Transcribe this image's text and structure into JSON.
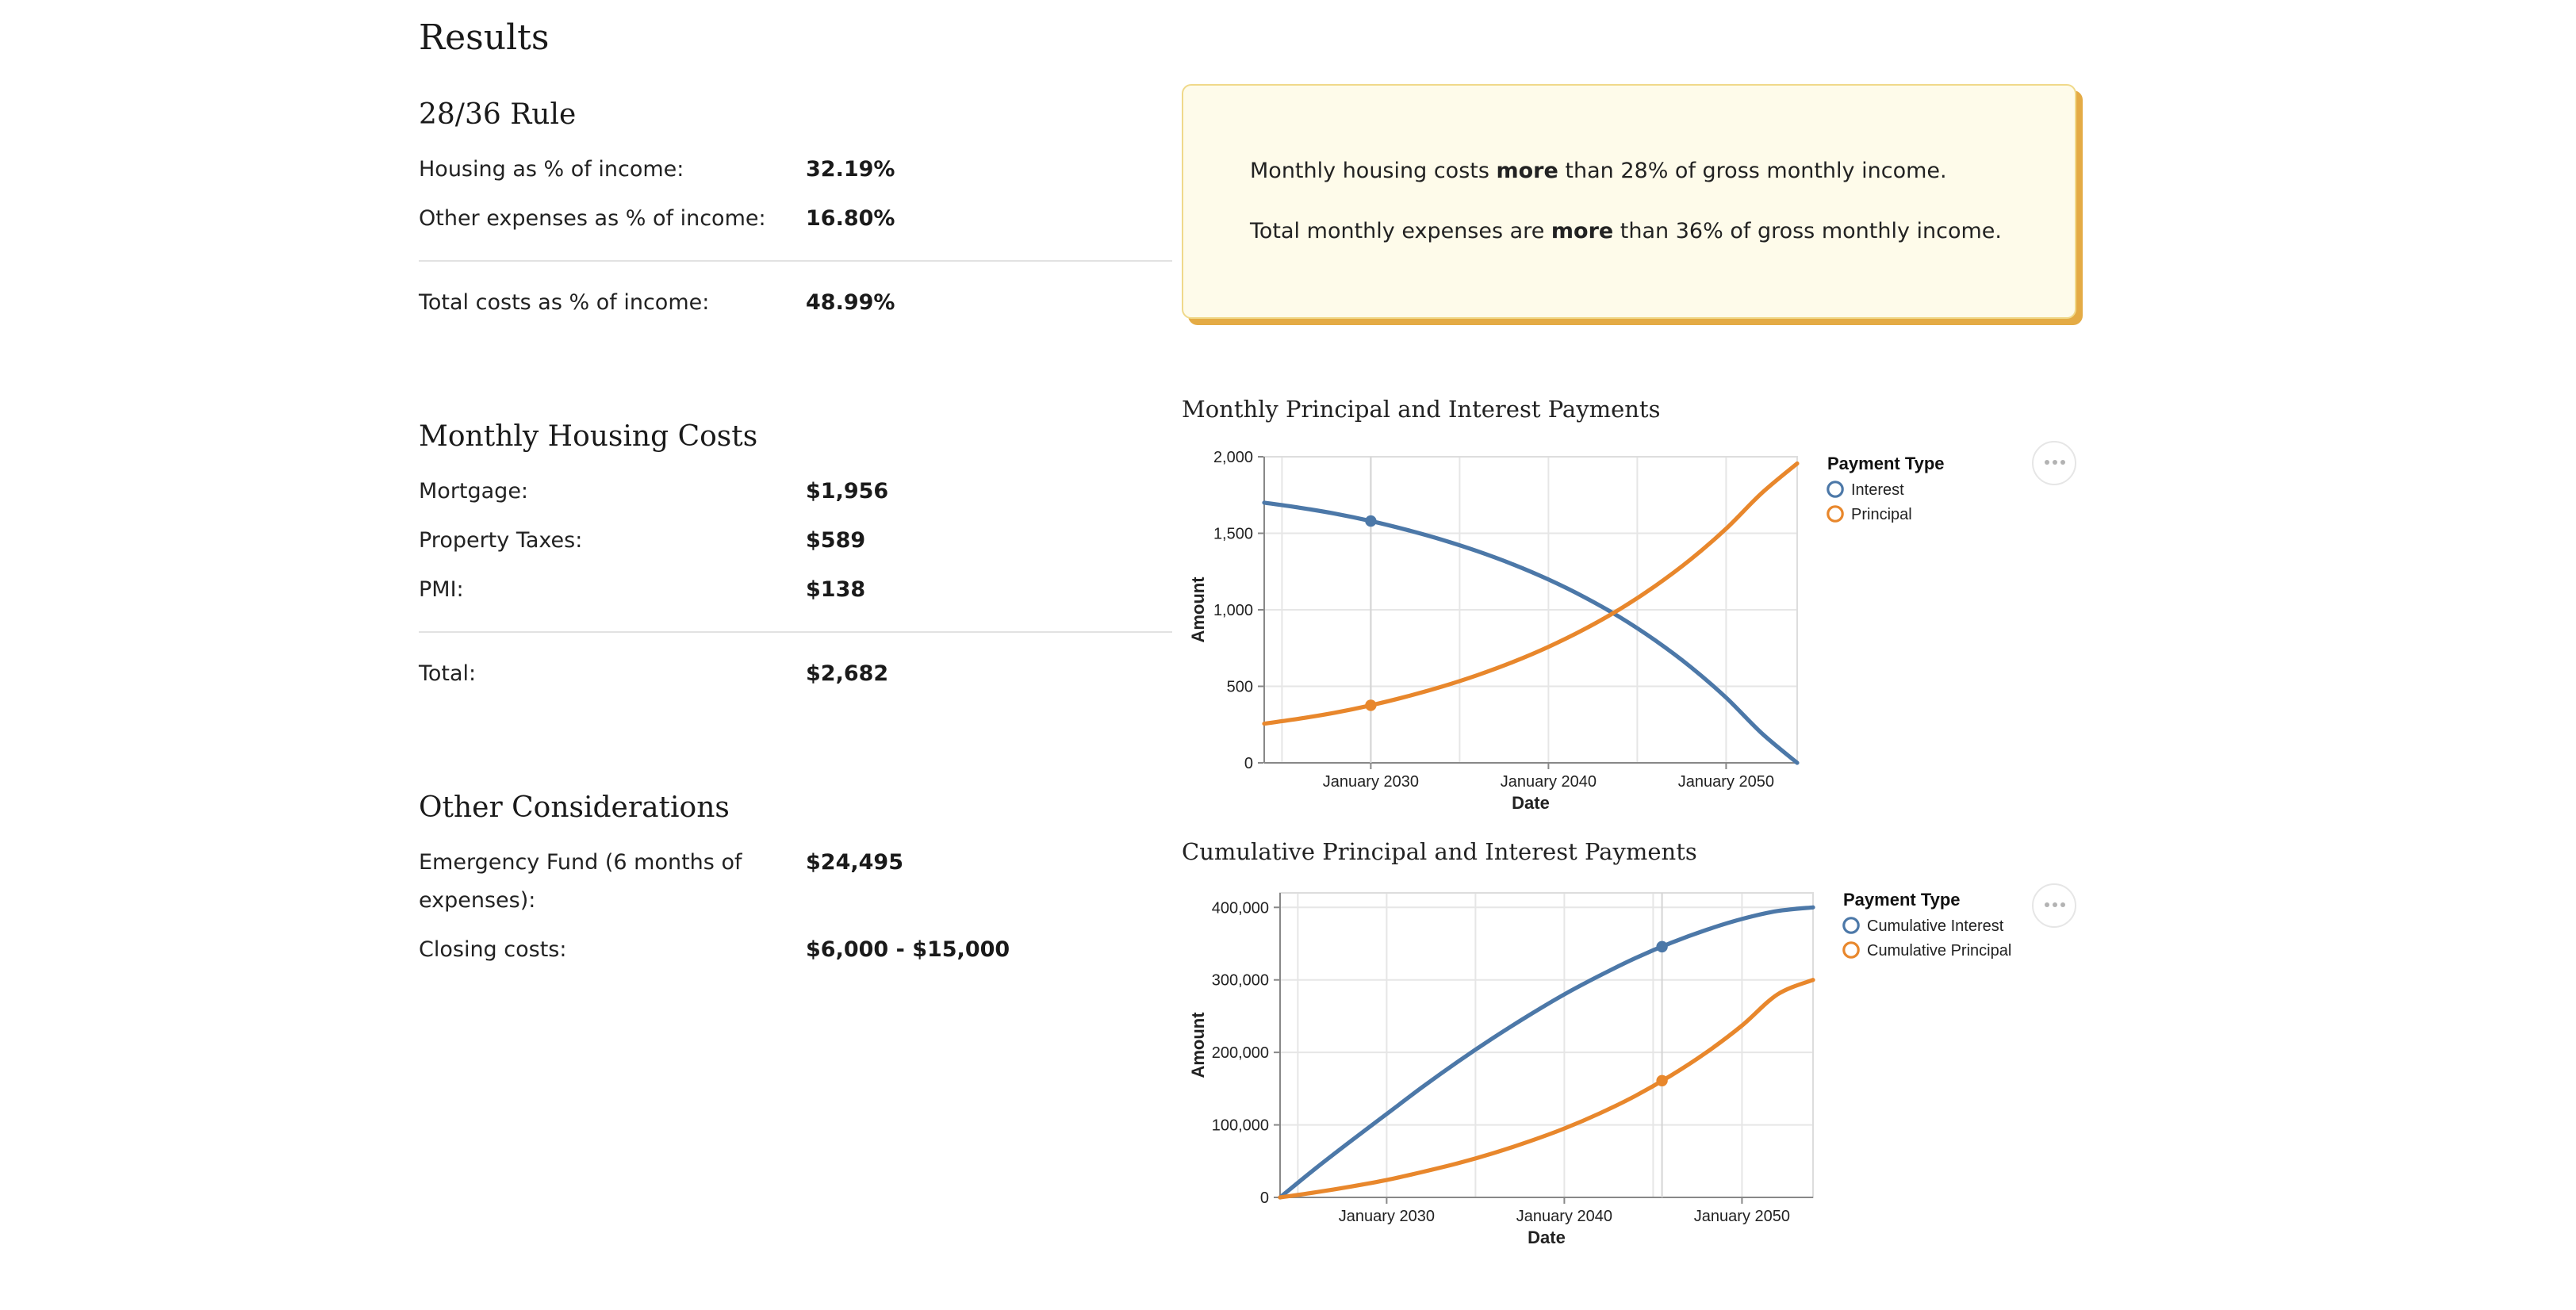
{
  "results": {
    "title": "Results",
    "rule_section": {
      "title": "28/36 Rule",
      "rows": [
        {
          "label": "Housing as % of income:",
          "value": "32.19%"
        },
        {
          "label": "Other expenses as % of income:",
          "value": "16.80%"
        }
      ],
      "total": {
        "label": "Total costs as % of income:",
        "value": "48.99%"
      }
    },
    "callout": {
      "line1": {
        "pre": "Monthly housing costs ",
        "bold": "more",
        "post": " than 28% of gross monthly income."
      },
      "line2": {
        "pre": "Total monthly expenses are ",
        "bold": "more",
        "post": " than 36% of gross monthly income."
      }
    },
    "housing": {
      "title": "Monthly Housing Costs",
      "rows": [
        {
          "label": "Mortgage:",
          "value": "$1,956"
        },
        {
          "label": "Property Taxes:",
          "value": "$589"
        },
        {
          "label": "PMI:",
          "value": "$138"
        }
      ],
      "total": {
        "label": "Total:",
        "value": "$2,682"
      }
    },
    "other": {
      "title": "Other Considerations",
      "rows": [
        {
          "label_line1": "Emergency Fund (6 months of",
          "label_line2": "expenses):",
          "value": "$24,495"
        },
        {
          "label": "Closing costs:",
          "value": "$6,000 - $15,000"
        }
      ]
    }
  },
  "colors": {
    "interest": "#4c78a8",
    "principal": "#e8872c",
    "callout_bg": "#fefbea",
    "callout_shadow": "#e4ab45"
  },
  "chart_data": [
    {
      "type": "line",
      "title": "Monthly Principal and Interest Payments",
      "xlabel": "Date",
      "ylabel": "Amount",
      "x_range": [
        "2024-01",
        "2054-01"
      ],
      "ylim": [
        0,
        2000
      ],
      "y_ticks": [
        0,
        500,
        1000,
        1500,
        2000
      ],
      "y_tick_labels": [
        "0",
        "500",
        "1,000",
        "1,500",
        "2,000"
      ],
      "x_ticks": [
        "January 2030",
        "January 2040",
        "January 2050"
      ],
      "legend": {
        "title": "Payment Type",
        "position": "right"
      },
      "grid": true,
      "series": [
        {
          "name": "Interest",
          "x": [
            "2024-01",
            "2026-01",
            "2028-01",
            "2030-01",
            "2032-01",
            "2034-01",
            "2036-01",
            "2038-01",
            "2040-01",
            "2042-01",
            "2044-01",
            "2046-01",
            "2048-01",
            "2050-01",
            "2052-01",
            "2054-01"
          ],
          "values": [
            1700,
            1667,
            1628,
            1580,
            1523,
            1458,
            1383,
            1297,
            1198,
            1084,
            953,
            801,
            627,
            426,
            194,
            0
          ]
        },
        {
          "name": "Principal",
          "x": [
            "2024-01",
            "2026-01",
            "2028-01",
            "2030-01",
            "2032-01",
            "2034-01",
            "2036-01",
            "2038-01",
            "2040-01",
            "2042-01",
            "2044-01",
            "2046-01",
            "2048-01",
            "2050-01",
            "2052-01",
            "2054-01"
          ],
          "values": [
            256,
            289,
            328,
            376,
            433,
            498,
            573,
            659,
            758,
            872,
            1003,
            1155,
            1329,
            1530,
            1762,
            1956
          ]
        }
      ],
      "highlight_x": "2030-01"
    },
    {
      "type": "line",
      "title": "Cumulative Principal and Interest Payments",
      "xlabel": "Date",
      "ylabel": "Amount",
      "x_range": [
        "2024-01",
        "2054-01"
      ],
      "ylim": [
        0,
        420000
      ],
      "y_ticks": [
        0,
        100000,
        200000,
        300000,
        400000
      ],
      "y_tick_labels": [
        "0",
        "100,000",
        "200,000",
        "300,000",
        "400,000"
      ],
      "x_ticks": [
        "January 2030",
        "January 2040",
        "January 2050"
      ],
      "legend": {
        "title": "Payment Type",
        "position": "right"
      },
      "grid": true,
      "series": [
        {
          "name": "Cumulative Interest",
          "x": [
            "2024-01",
            "2026-01",
            "2028-01",
            "2030-01",
            "2032-01",
            "2034-01",
            "2036-01",
            "2038-01",
            "2040-01",
            "2042-01",
            "2044-01",
            "2046-01",
            "2048-01",
            "2050-01",
            "2052-01",
            "2054-01"
          ],
          "values": [
            0,
            40000,
            78000,
            115000,
            152000,
            187000,
            220000,
            251000,
            280000,
            306000,
            330000,
            351000,
            369000,
            384000,
            395000,
            400000
          ]
        },
        {
          "name": "Cumulative Principal",
          "x": [
            "2024-01",
            "2026-01",
            "2028-01",
            "2030-01",
            "2032-01",
            "2034-01",
            "2036-01",
            "2038-01",
            "2040-01",
            "2042-01",
            "2044-01",
            "2046-01",
            "2048-01",
            "2050-01",
            "2052-01",
            "2054-01"
          ],
          "values": [
            0,
            7000,
            15000,
            24000,
            35000,
            47000,
            61000,
            77000,
            95000,
            116000,
            140000,
            168000,
            200000,
            237000,
            280000,
            300000
          ]
        }
      ],
      "highlight_x": "2045-07"
    }
  ]
}
